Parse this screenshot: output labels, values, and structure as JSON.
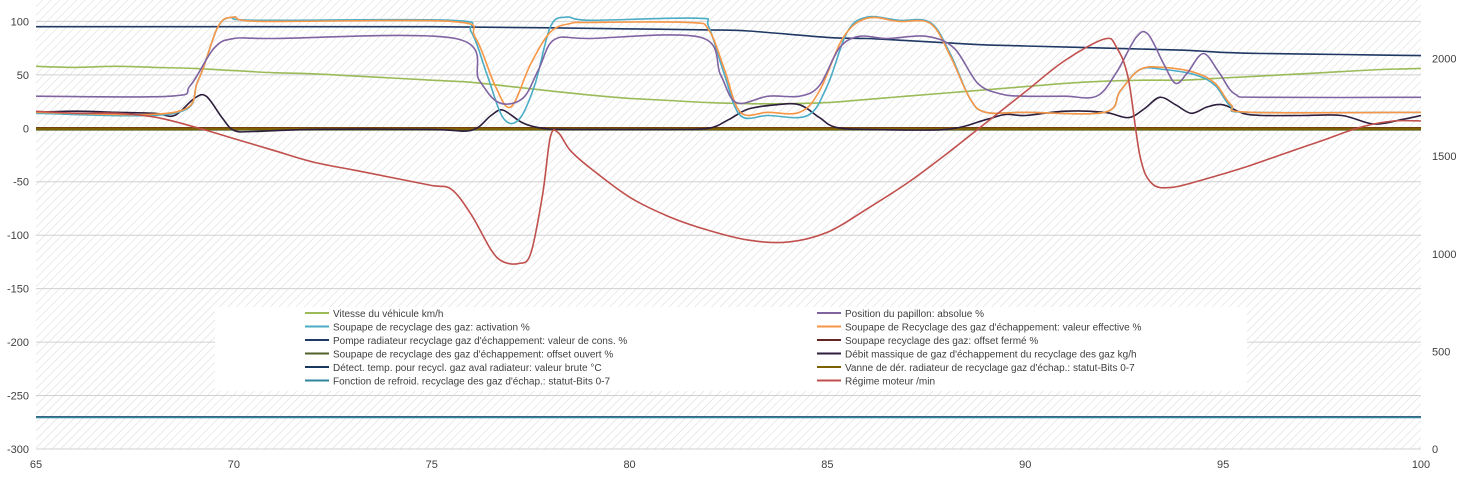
{
  "chart_data": {
    "type": "line",
    "title": "",
    "xlabel": "",
    "ylabel": "",
    "xlim": [
      65,
      100
    ],
    "ylim": [
      -300,
      120
    ],
    "y2lim": [
      0,
      2300
    ],
    "grid": true,
    "legend_position": "bottom-center inside plot",
    "x_ticks": [
      "65",
      "70",
      "75",
      "80",
      "85",
      "90",
      "95",
      "100"
    ],
    "y_ticks": [
      "100",
      "50",
      "0",
      "-50",
      "-100",
      "-150",
      "-200",
      "-250",
      "-300"
    ],
    "y2_ticks": [
      "2000",
      "1500",
      "1000",
      "500",
      "0"
    ],
    "series": [
      {
        "name": "Vitesse du véhicule  km/h",
        "axis": "left",
        "color": "#9bbb59",
        "points": [
          [
            65,
            58
          ],
          [
            66,
            57
          ],
          [
            67,
            58
          ],
          [
            68,
            57
          ],
          [
            69,
            56
          ],
          [
            70,
            54
          ],
          [
            71,
            52
          ],
          [
            72,
            51
          ],
          [
            73,
            49
          ],
          [
            74,
            47
          ],
          [
            75,
            45
          ],
          [
            76,
            43
          ],
          [
            77,
            39
          ],
          [
            78,
            35
          ],
          [
            79,
            31
          ],
          [
            80,
            28
          ],
          [
            81,
            26
          ],
          [
            82,
            24
          ],
          [
            83,
            23
          ],
          [
            84,
            23
          ],
          [
            85,
            24
          ],
          [
            86,
            27
          ],
          [
            87,
            30
          ],
          [
            88,
            33
          ],
          [
            89,
            36
          ],
          [
            90,
            39
          ],
          [
            91,
            42
          ],
          [
            92,
            44
          ],
          [
            93,
            45
          ],
          [
            94,
            45
          ],
          [
            95,
            47
          ],
          [
            96,
            49
          ],
          [
            97,
            51
          ],
          [
            98,
            53
          ],
          [
            99,
            55
          ],
          [
            100,
            56
          ]
        ]
      },
      {
        "name": "Position du papillon: absolue  %",
        "axis": "left",
        "color": "#8064a2",
        "points": [
          [
            65,
            30
          ],
          [
            68.4,
            30
          ],
          [
            68.9,
            40
          ],
          [
            69.5,
            75
          ],
          [
            70,
            84
          ],
          [
            71,
            84
          ],
          [
            75.6,
            84
          ],
          [
            76.2,
            45
          ],
          [
            76.7,
            24
          ],
          [
            77.3,
            28
          ],
          [
            77.7,
            55
          ],
          [
            78.1,
            83
          ],
          [
            79,
            84
          ],
          [
            81.8,
            85
          ],
          [
            82.3,
            50
          ],
          [
            82.7,
            24
          ],
          [
            83.5,
            30
          ],
          [
            84.3,
            30
          ],
          [
            84.8,
            40
          ],
          [
            85.3,
            75
          ],
          [
            85.8,
            86
          ],
          [
            86.5,
            84
          ],
          [
            87.5,
            86
          ],
          [
            88.2,
            75
          ],
          [
            88.8,
            42
          ],
          [
            89.4,
            32
          ],
          [
            90,
            30
          ],
          [
            91,
            30
          ],
          [
            91.8,
            30
          ],
          [
            92.3,
            52
          ],
          [
            92.8,
            85
          ],
          [
            93.1,
            88
          ],
          [
            93.5,
            60
          ],
          [
            93.8,
            42
          ],
          [
            94.1,
            52
          ],
          [
            94.5,
            70
          ],
          [
            94.9,
            52
          ],
          [
            95.3,
            32
          ],
          [
            96,
            29
          ],
          [
            100,
            29
          ]
        ]
      },
      {
        "name": "Soupape de recyclage des gaz: activation  %",
        "axis": "left",
        "color": "#4bacc6",
        "points": [
          [
            65,
            14
          ],
          [
            68.5,
            14
          ],
          [
            69.1,
            45
          ],
          [
            69.6,
            95
          ],
          [
            70,
            104
          ],
          [
            70.5,
            101
          ],
          [
            75.5,
            101
          ],
          [
            76,
            90
          ],
          [
            76.4,
            50
          ],
          [
            76.8,
            10
          ],
          [
            77.2,
            8
          ],
          [
            77.6,
            40
          ],
          [
            78,
            95
          ],
          [
            78.4,
            104
          ],
          [
            79,
            101
          ],
          [
            81.7,
            103
          ],
          [
            82,
            95
          ],
          [
            82.4,
            50
          ],
          [
            82.8,
            12
          ],
          [
            83.5,
            12
          ],
          [
            84.5,
            12
          ],
          [
            85,
            40
          ],
          [
            85.5,
            90
          ],
          [
            86,
            104
          ],
          [
            86.8,
            101
          ],
          [
            87.6,
            99
          ],
          [
            88.1,
            70
          ],
          [
            88.6,
            28
          ],
          [
            89,
            15
          ],
          [
            90,
            15
          ],
          [
            92,
            15
          ],
          [
            92.4,
            35
          ],
          [
            92.9,
            55
          ],
          [
            93.5,
            55
          ],
          [
            94.3,
            50
          ],
          [
            94.8,
            40
          ],
          [
            95.2,
            20
          ],
          [
            95.7,
            15
          ],
          [
            100,
            15
          ]
        ]
      },
      {
        "name": "Soupape de Recyclage des gaz d'échappement: valeur effective  %",
        "axis": "left",
        "color": "#f79646",
        "points": [
          [
            65,
            15
          ],
          [
            68.5,
            15
          ],
          [
            69.1,
            45
          ],
          [
            69.6,
            95
          ],
          [
            70,
            104
          ],
          [
            70.7,
            100
          ],
          [
            75.5,
            100
          ],
          [
            76.1,
            85
          ],
          [
            76.6,
            40
          ],
          [
            77,
            20
          ],
          [
            77.5,
            60
          ],
          [
            78,
            90
          ],
          [
            78.5,
            98
          ],
          [
            79,
            99
          ],
          [
            81.5,
            99
          ],
          [
            82,
            92
          ],
          [
            82.4,
            55
          ],
          [
            82.8,
            15
          ],
          [
            83.5,
            15
          ],
          [
            84.3,
            15
          ],
          [
            84.8,
            35
          ],
          [
            85.4,
            85
          ],
          [
            86,
            103
          ],
          [
            86.8,
            100
          ],
          [
            87.6,
            98
          ],
          [
            88.1,
            68
          ],
          [
            88.6,
            28
          ],
          [
            89,
            15
          ],
          [
            90,
            15
          ],
          [
            92,
            15
          ],
          [
            92.4,
            35
          ],
          [
            92.9,
            55
          ],
          [
            93.5,
            57
          ],
          [
            94.3,
            52
          ],
          [
            94.8,
            42
          ],
          [
            95.2,
            22
          ],
          [
            95.7,
            15
          ],
          [
            100,
            15
          ]
        ]
      },
      {
        "name": "Pompe radiateur recyclage gaz d'échappement: valeur de cons.  %",
        "axis": "left",
        "color": "#1f3864",
        "points": [
          [
            65,
            95
          ],
          [
            70,
            95
          ],
          [
            75,
            95
          ],
          [
            78,
            94
          ],
          [
            80,
            93
          ],
          [
            82,
            92
          ],
          [
            83,
            91
          ],
          [
            85,
            85
          ],
          [
            86,
            84
          ],
          [
            87,
            82
          ],
          [
            88,
            80
          ],
          [
            89,
            78
          ],
          [
            90,
            77
          ],
          [
            92,
            75
          ],
          [
            94,
            73
          ],
          [
            95,
            71
          ],
          [
            96,
            70
          ],
          [
            98,
            69
          ],
          [
            100,
            68
          ]
        ]
      },
      {
        "name": "Soupape recyclage des gaz: offset fermé  %",
        "axis": "left",
        "color": "#632523",
        "points": [
          [
            65,
            0
          ],
          [
            100,
            0
          ]
        ]
      },
      {
        "name": "Soupape de recyclage des gaz d'échappement: offset ouvert  %",
        "axis": "left",
        "color": "#4f6228",
        "points": [
          [
            65,
            -1
          ],
          [
            100,
            -1
          ]
        ]
      },
      {
        "name": "Débit massique de gaz d'échappement du recyclage des gaz  kg/h",
        "axis": "left",
        "color": "#2d1e3d",
        "points": [
          [
            65,
            15
          ],
          [
            66,
            16
          ],
          [
            67,
            15
          ],
          [
            68,
            14
          ],
          [
            68.5,
            12
          ],
          [
            69,
            28
          ],
          [
            69.3,
            30
          ],
          [
            69.7,
            10
          ],
          [
            70,
            -2
          ],
          [
            70.5,
            -3
          ],
          [
            72,
            -1
          ],
          [
            75,
            -1
          ],
          [
            76,
            -2
          ],
          [
            76.5,
            12
          ],
          [
            76.8,
            17
          ],
          [
            77.3,
            5
          ],
          [
            77.8,
            0
          ],
          [
            78.5,
            -1
          ],
          [
            81,
            -1
          ],
          [
            82,
            0
          ],
          [
            82.5,
            8
          ],
          [
            83,
            18
          ],
          [
            83.7,
            22
          ],
          [
            84.3,
            22
          ],
          [
            84.8,
            10
          ],
          [
            85.2,
            1
          ],
          [
            86,
            -1
          ],
          [
            88,
            -1
          ],
          [
            89,
            8
          ],
          [
            89.5,
            13
          ],
          [
            90,
            12
          ],
          [
            91,
            16
          ],
          [
            92,
            15
          ],
          [
            92.6,
            10
          ],
          [
            93,
            18
          ],
          [
            93.4,
            29
          ],
          [
            93.8,
            22
          ],
          [
            94.2,
            14
          ],
          [
            94.6,
            20
          ],
          [
            95,
            22
          ],
          [
            95.5,
            14
          ],
          [
            96,
            12
          ],
          [
            97,
            12
          ],
          [
            98,
            12
          ],
          [
            98.8,
            4
          ],
          [
            99.5,
            8
          ],
          [
            100,
            12
          ]
        ]
      },
      {
        "name": "Détect. temp. pour recycl. gaz aval radiateur: valeur brute  °C",
        "axis": "left",
        "color": "#17375e",
        "points": [
          [
            65,
            -270
          ],
          [
            100,
            -270
          ]
        ]
      },
      {
        "name": "Vanne de dér. radiateur de recyclage gaz d'échap.: statut-Bits 0-7",
        "axis": "left",
        "color": "#7f6000",
        "points": [
          [
            65,
            -0.5
          ],
          [
            100,
            -0.5
          ]
        ]
      },
      {
        "name": "Fonction de refroid. recyclage des gaz d'échap.: statut-Bits 0-7",
        "axis": "left",
        "color": "#31859c",
        "points": [
          [
            65,
            -270.5
          ],
          [
            100,
            -270.5
          ]
        ]
      },
      {
        "name": "Régime moteur  /min",
        "axis": "right",
        "color": "#c0504d",
        "points": [
          [
            65,
            1730
          ],
          [
            66,
            1720
          ],
          [
            67,
            1720
          ],
          [
            68,
            1700
          ],
          [
            69,
            1650
          ],
          [
            70,
            1590
          ],
          [
            71,
            1530
          ],
          [
            72,
            1470
          ],
          [
            73,
            1430
          ],
          [
            74,
            1390
          ],
          [
            75,
            1350
          ],
          [
            75.5,
            1330
          ],
          [
            76,
            1200
          ],
          [
            76.5,
            1020
          ],
          [
            76.8,
            960
          ],
          [
            77.2,
            950
          ],
          [
            77.5,
            1000
          ],
          [
            77.8,
            1300
          ],
          [
            78,
            1600
          ],
          [
            78.2,
            1620
          ],
          [
            78.5,
            1530
          ],
          [
            79,
            1440
          ],
          [
            80,
            1290
          ],
          [
            81,
            1190
          ],
          [
            82,
            1120
          ],
          [
            83,
            1070
          ],
          [
            84,
            1060
          ],
          [
            85,
            1110
          ],
          [
            86,
            1230
          ],
          [
            87,
            1360
          ],
          [
            88,
            1510
          ],
          [
            89,
            1670
          ],
          [
            90,
            1830
          ],
          [
            91,
            1990
          ],
          [
            92,
            2100
          ],
          [
            92.3,
            2060
          ],
          [
            92.6,
            1900
          ],
          [
            92.9,
            1500
          ],
          [
            93.2,
            1360
          ],
          [
            93.7,
            1340
          ],
          [
            94.5,
            1380
          ],
          [
            95.5,
            1440
          ],
          [
            96.5,
            1510
          ],
          [
            97.5,
            1580
          ],
          [
            98.5,
            1650
          ],
          [
            99.3,
            1680
          ],
          [
            100,
            1680
          ]
        ]
      }
    ]
  }
}
